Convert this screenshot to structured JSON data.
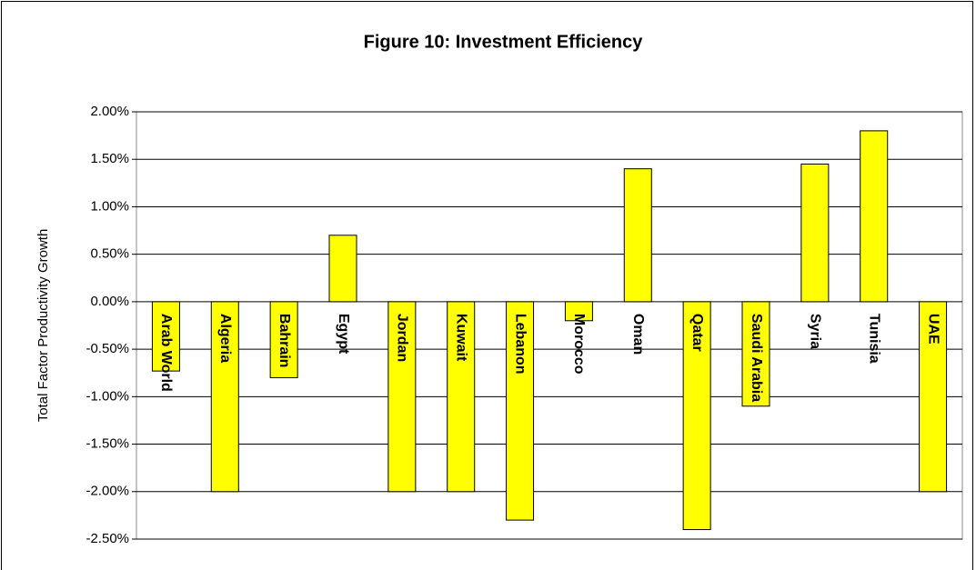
{
  "chart_data": {
    "type": "bar",
    "title": "Figure 10: Investment Efficiency",
    "y_label": "Total Factor Productivity Growth",
    "categories": [
      "Arab World",
      "Algeria",
      "Bahrain",
      "Egypt",
      "Jordan",
      "Kuwait",
      "Lebanon",
      "Morocco",
      "Oman",
      "Qatar",
      "Saudi Arabia",
      "Syria",
      "Tunisia",
      "UAE"
    ],
    "values": [
      -0.73,
      -2.0,
      -0.8,
      0.7,
      -2.0,
      -2.0,
      -2.3,
      -0.2,
      1.4,
      -2.4,
      -1.1,
      1.45,
      1.8,
      -2.0
    ],
    "color": "#ffff00",
    "ylim": [
      -2.5,
      2.0
    ],
    "yticks": [
      {
        "value": 2.0,
        "label": "2.00%"
      },
      {
        "value": 1.5,
        "label": "1.50%"
      },
      {
        "value": 1.0,
        "label": "1.00%"
      },
      {
        "value": 0.5,
        "label": "0.50%"
      },
      {
        "value": 0.0,
        "label": "0.00%"
      },
      {
        "value": -0.5,
        "label": "-0.50%"
      },
      {
        "value": -1.0,
        "label": "-1.00%"
      },
      {
        "value": -1.5,
        "label": "-1.50%"
      },
      {
        "value": -2.0,
        "label": "-2.00%"
      },
      {
        "value": -2.5,
        "label": "-2.50%"
      }
    ],
    "grid": true
  }
}
